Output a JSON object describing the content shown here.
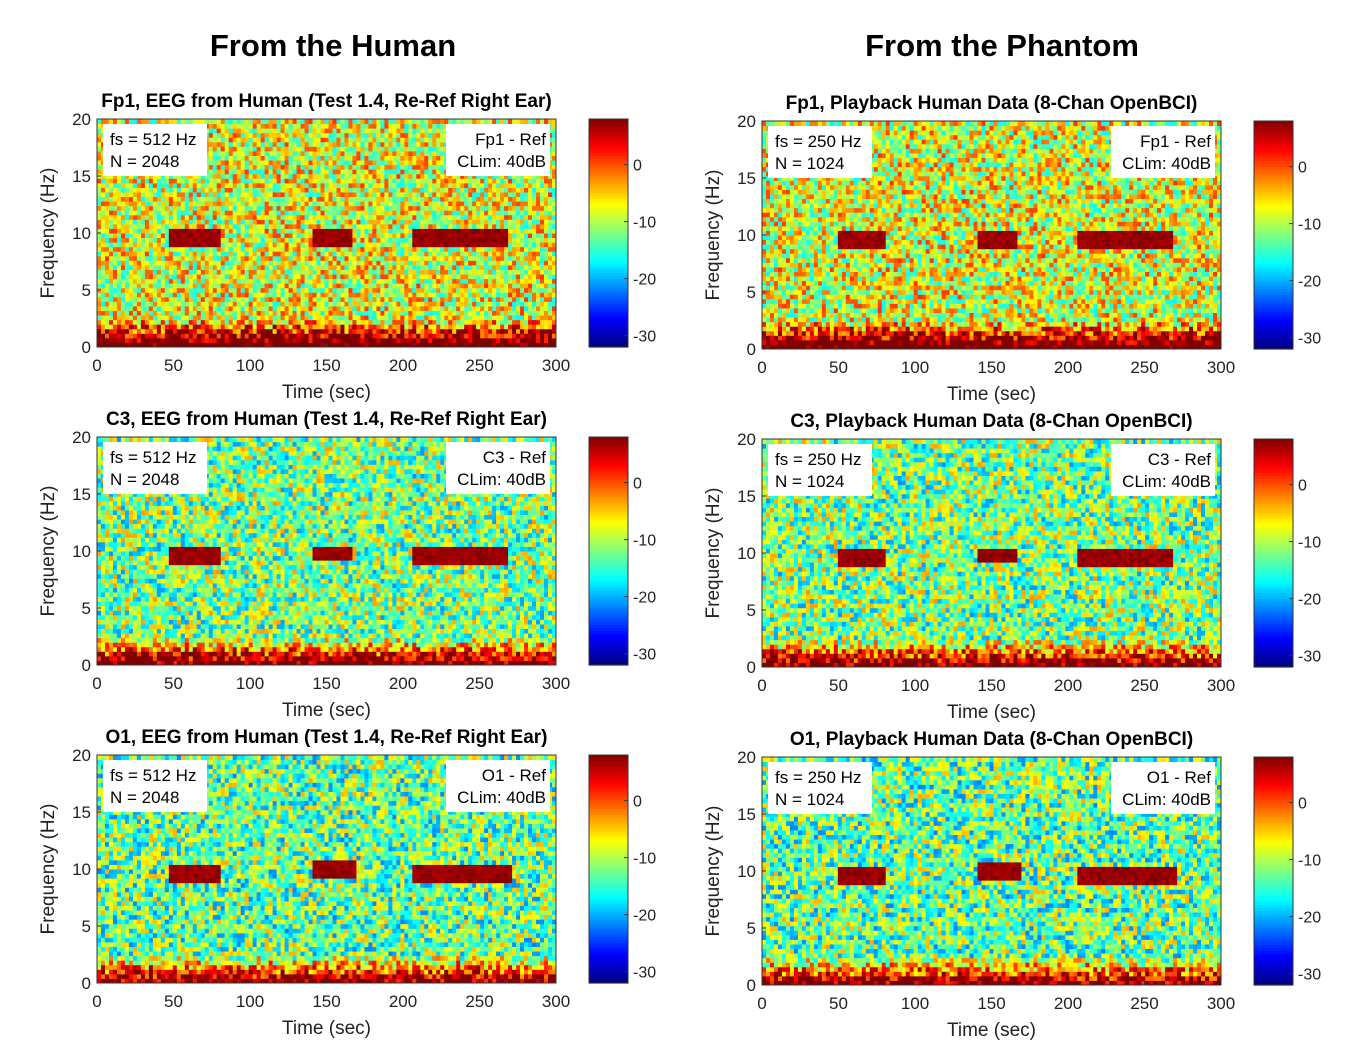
{
  "columns": [
    {
      "title": "From the Human"
    },
    {
      "title": "From the Phantom"
    }
  ],
  "chart_data": [
    {
      "type": "heatmap",
      "title": "Fp1, EEG from Human (Test 1.4, Re-Ref Right Ear)",
      "xlabel": "Time (sec)",
      "ylabel": "Frequency (Hz)",
      "xlim": [
        0,
        300
      ],
      "ylim": [
        0,
        20
      ],
      "xticks": [
        "0",
        "50",
        "100",
        "150",
        "200",
        "250",
        "300"
      ],
      "yticks": [
        "0",
        "5",
        "10",
        "15",
        "20"
      ],
      "colorbar": {
        "ticks": [
          "0",
          "-10",
          "-20",
          "-30"
        ],
        "colormap": "jet"
      },
      "annotations": {
        "left": [
          "fs = 512 Hz",
          "N = 2048"
        ],
        "right": [
          "Fp1 - Ref",
          "CLim: 40dB"
        ]
      },
      "alpha_segments": [
        [
          48,
          80,
          9.5
        ],
        [
          140,
          168,
          9.5
        ],
        [
          205,
          268,
          9.5
        ]
      ],
      "background_level": 0.6
    },
    {
      "type": "heatmap",
      "title": "Fp1, Playback Human Data (8-Chan OpenBCI)",
      "xlabel": "Time (sec)",
      "ylabel": "Frequency (Hz)",
      "xlim": [
        0,
        300
      ],
      "ylim": [
        0,
        20
      ],
      "xticks": [
        "0",
        "50",
        "100",
        "150",
        "200",
        "250",
        "300"
      ],
      "yticks": [
        "0",
        "5",
        "10",
        "15",
        "20"
      ],
      "colorbar": {
        "ticks": [
          "0",
          "-10",
          "-20",
          "-30"
        ],
        "colormap": "jet"
      },
      "annotations": {
        "left": [
          "fs = 250 Hz",
          "N = 1024"
        ],
        "right": [
          "Fp1 - Ref",
          "CLim: 40dB"
        ]
      },
      "alpha_segments": [
        [
          50,
          80,
          9.5
        ],
        [
          142,
          168,
          9.5
        ],
        [
          205,
          268,
          9.5
        ]
      ],
      "background_level": 0.6
    },
    {
      "type": "heatmap",
      "title": "C3, EEG from Human (Test 1.4, Re-Ref Right Ear)",
      "xlabel": "Time (sec)",
      "ylabel": "Frequency (Hz)",
      "xlim": [
        0,
        300
      ],
      "ylim": [
        0,
        20
      ],
      "xticks": [
        "0",
        "50",
        "100",
        "150",
        "200",
        "250",
        "300"
      ],
      "yticks": [
        "0",
        "5",
        "10",
        "15",
        "20"
      ],
      "colorbar": {
        "ticks": [
          "0",
          "-10",
          "-20",
          "-30"
        ],
        "colormap": "jet"
      },
      "annotations": {
        "left": [
          "fs = 512 Hz",
          "N = 2048"
        ],
        "right": [
          "C3 - Ref",
          "CLim: 40dB"
        ]
      },
      "alpha_segments": [
        [
          48,
          80,
          9.5
        ],
        [
          140,
          168,
          9.8
        ],
        [
          205,
          268,
          9.5
        ]
      ],
      "background_level": 0.5
    },
    {
      "type": "heatmap",
      "title": "C3, Playback Human Data (8-Chan OpenBCI)",
      "xlabel": "Time (sec)",
      "ylabel": "Frequency (Hz)",
      "xlim": [
        0,
        300
      ],
      "ylim": [
        0,
        20
      ],
      "xticks": [
        "0",
        "50",
        "100",
        "150",
        "200",
        "250",
        "300"
      ],
      "yticks": [
        "0",
        "5",
        "10",
        "15",
        "20"
      ],
      "colorbar": {
        "ticks": [
          "0",
          "-10",
          "-20",
          "-30"
        ],
        "colormap": "jet"
      },
      "annotations": {
        "left": [
          "fs = 250 Hz",
          "N = 1024"
        ],
        "right": [
          "C3 - Ref",
          "CLim: 40dB"
        ]
      },
      "alpha_segments": [
        [
          50,
          80,
          9.5
        ],
        [
          142,
          168,
          9.8
        ],
        [
          205,
          268,
          9.5
        ]
      ],
      "background_level": 0.5
    },
    {
      "type": "heatmap",
      "title": "O1, EEG from Human (Test 1.4, Re-Ref Right Ear)",
      "xlabel": "Time (sec)",
      "ylabel": "Frequency (Hz)",
      "xlim": [
        0,
        300
      ],
      "ylim": [
        0,
        20
      ],
      "xticks": [
        "0",
        "50",
        "100",
        "150",
        "200",
        "250",
        "300"
      ],
      "yticks": [
        "0",
        "5",
        "10",
        "15",
        "20"
      ],
      "colorbar": {
        "ticks": [
          "0",
          "-10",
          "-20",
          "-30"
        ],
        "colormap": "jet"
      },
      "annotations": {
        "left": [
          "fs = 512 Hz",
          "N = 2048"
        ],
        "right": [
          "O1 - Ref",
          "CLim: 40dB"
        ]
      },
      "alpha_segments": [
        [
          48,
          80,
          9.5
        ],
        [
          140,
          170,
          10
        ],
        [
          205,
          270,
          9.5
        ]
      ],
      "background_level": 0.48
    },
    {
      "type": "heatmap",
      "title": "O1, Playback Human Data (8-Chan OpenBCI)",
      "xlabel": "Time (sec)",
      "ylabel": "Frequency (Hz)",
      "xlim": [
        0,
        300
      ],
      "ylim": [
        0,
        20
      ],
      "xticks": [
        "0",
        "50",
        "100",
        "150",
        "200",
        "250",
        "300"
      ],
      "yticks": [
        "0",
        "5",
        "10",
        "15",
        "20"
      ],
      "colorbar": {
        "ticks": [
          "0",
          "-10",
          "-20",
          "-30"
        ],
        "colormap": "jet"
      },
      "annotations": {
        "left": [
          "fs = 250 Hz",
          "N = 1024"
        ],
        "right": [
          "O1 - Ref",
          "CLim: 40dB"
        ]
      },
      "alpha_segments": [
        [
          50,
          80,
          9.5
        ],
        [
          142,
          170,
          10
        ],
        [
          205,
          270,
          9.5
        ]
      ],
      "background_level": 0.48
    }
  ]
}
